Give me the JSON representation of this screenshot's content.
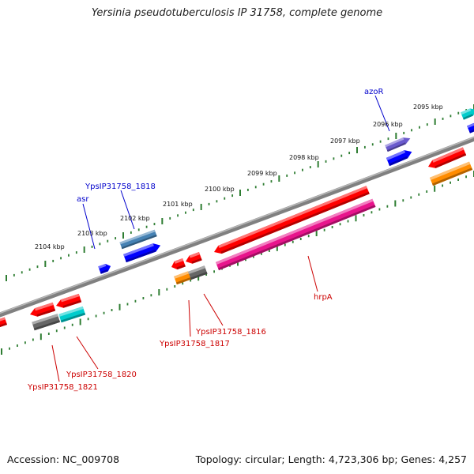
{
  "title": "Yersinia pseudotuberculosis IP 31758, complete genome",
  "footer": {
    "accession": "Accession: NC_009708",
    "summary": "Topology: circular; Length: 4,723,306 bp; Genes: 4,257"
  },
  "ticks": [
    "2095 kbp",
    "2096 kbp",
    "2097 kbp",
    "2098 kbp",
    "2099 kbp",
    "2100 kbp",
    "2101 kbp",
    "2102 kbp",
    "2103 kbp",
    "2104 kbp"
  ],
  "forward_labels": [
    "azoR",
    "YpsIP31758_1818",
    "asr"
  ],
  "reverse_labels": [
    "hrpA",
    "YpsIP31758_1816",
    "YpsIP31758_1817",
    "YpsIP31758_1820",
    "YpsIP31758_1821"
  ],
  "colors": {
    "backbone": "#808080",
    "tick_marks": "#2e7d32",
    "forward_label": "#0000cc",
    "reverse_label": "#cc0000",
    "gene_red": "#ff0000",
    "gene_blue": "#0000ff",
    "gene_steelblue": "#4682b4",
    "gene_slateblue": "#6a5acd",
    "gene_cyan": "#00cccc",
    "gene_gray": "#666666",
    "gene_orange": "#ff8c00",
    "gene_magenta": "#e8148c"
  }
}
